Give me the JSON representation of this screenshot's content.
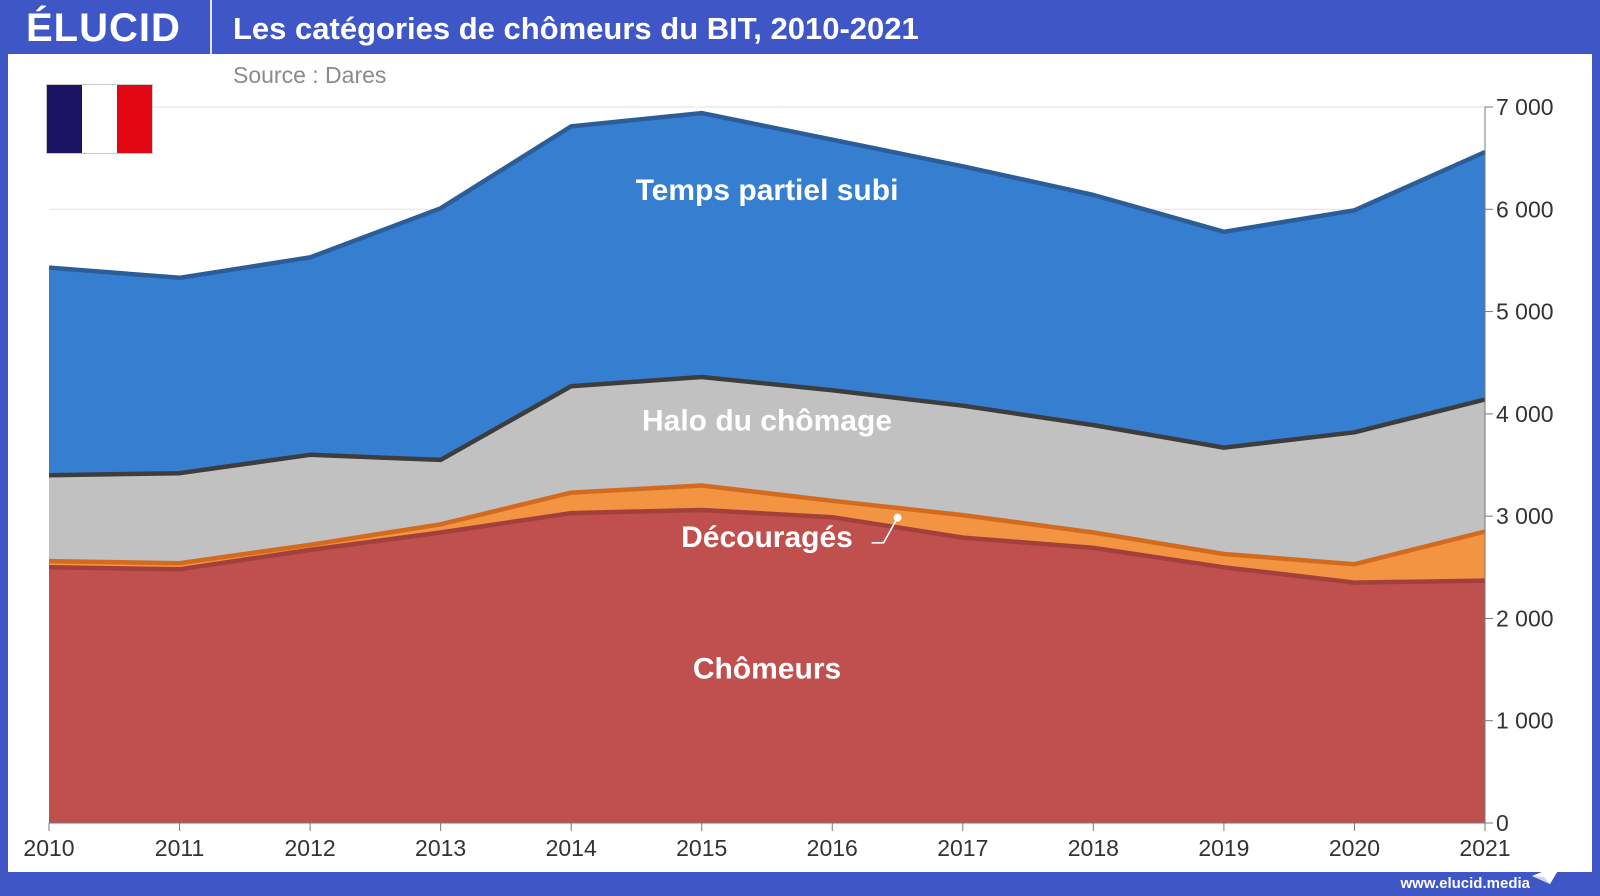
{
  "header": {
    "logo": "ÉLUCID",
    "title": "Les catégories de chômeurs du BIT, 2010-2021",
    "source": "Source : Dares"
  },
  "footer": {
    "url": "www.elucid.media"
  },
  "colors": {
    "header_bg": "#3f57c6",
    "flag_blue": "#1b1464",
    "flag_white": "#ffffff",
    "flag_red": "#e30613"
  },
  "icons": {
    "flag": "france-flag-icon",
    "arrow": "paper-plane-arrow-icon"
  },
  "chart_data": {
    "type": "area",
    "stacked": true,
    "title": "Les catégories de chômeurs du BIT, 2010-2021",
    "x": [
      "2010",
      "2011",
      "2012",
      "2013",
      "2014",
      "2015",
      "2016",
      "2017",
      "2018",
      "2019",
      "2020",
      "2021"
    ],
    "ylim": [
      0,
      7000
    ],
    "y_ticks": [
      0,
      1000,
      2000,
      3000,
      4000,
      5000,
      6000,
      7000
    ],
    "y_tick_labels": [
      "0",
      "1 000",
      "2 000",
      "3 000",
      "4 000",
      "5 000",
      "6 000",
      "7 000"
    ],
    "y_axis_side": "right",
    "grid": "horizontal",
    "series": [
      {
        "name": "Chômeurs",
        "color": "#c0504d",
        "edge": "#a33f3c",
        "values": [
          2500,
          2480,
          2670,
          2840,
          3030,
          3060,
          2990,
          2790,
          2690,
          2500,
          2350,
          2370
        ]
      },
      {
        "name": "Découragés",
        "color": "#f29442",
        "edge": "#d46a1e",
        "values": [
          60,
          60,
          50,
          80,
          200,
          240,
          160,
          220,
          150,
          130,
          180,
          480
        ]
      },
      {
        "name": "Halo du chômage",
        "color": "#c1c1c1",
        "edge": "#3d3d3d",
        "values": [
          840,
          880,
          880,
          630,
          1040,
          1060,
          1080,
          1070,
          1050,
          1040,
          1290,
          1290
        ]
      },
      {
        "name": "Temps partiel subi",
        "color": "#367ed0",
        "edge": "#2b5d99",
        "values": [
          2030,
          1910,
          1930,
          2460,
          2540,
          2580,
          2450,
          2340,
          2250,
          2110,
          2170,
          2420
        ]
      }
    ]
  }
}
